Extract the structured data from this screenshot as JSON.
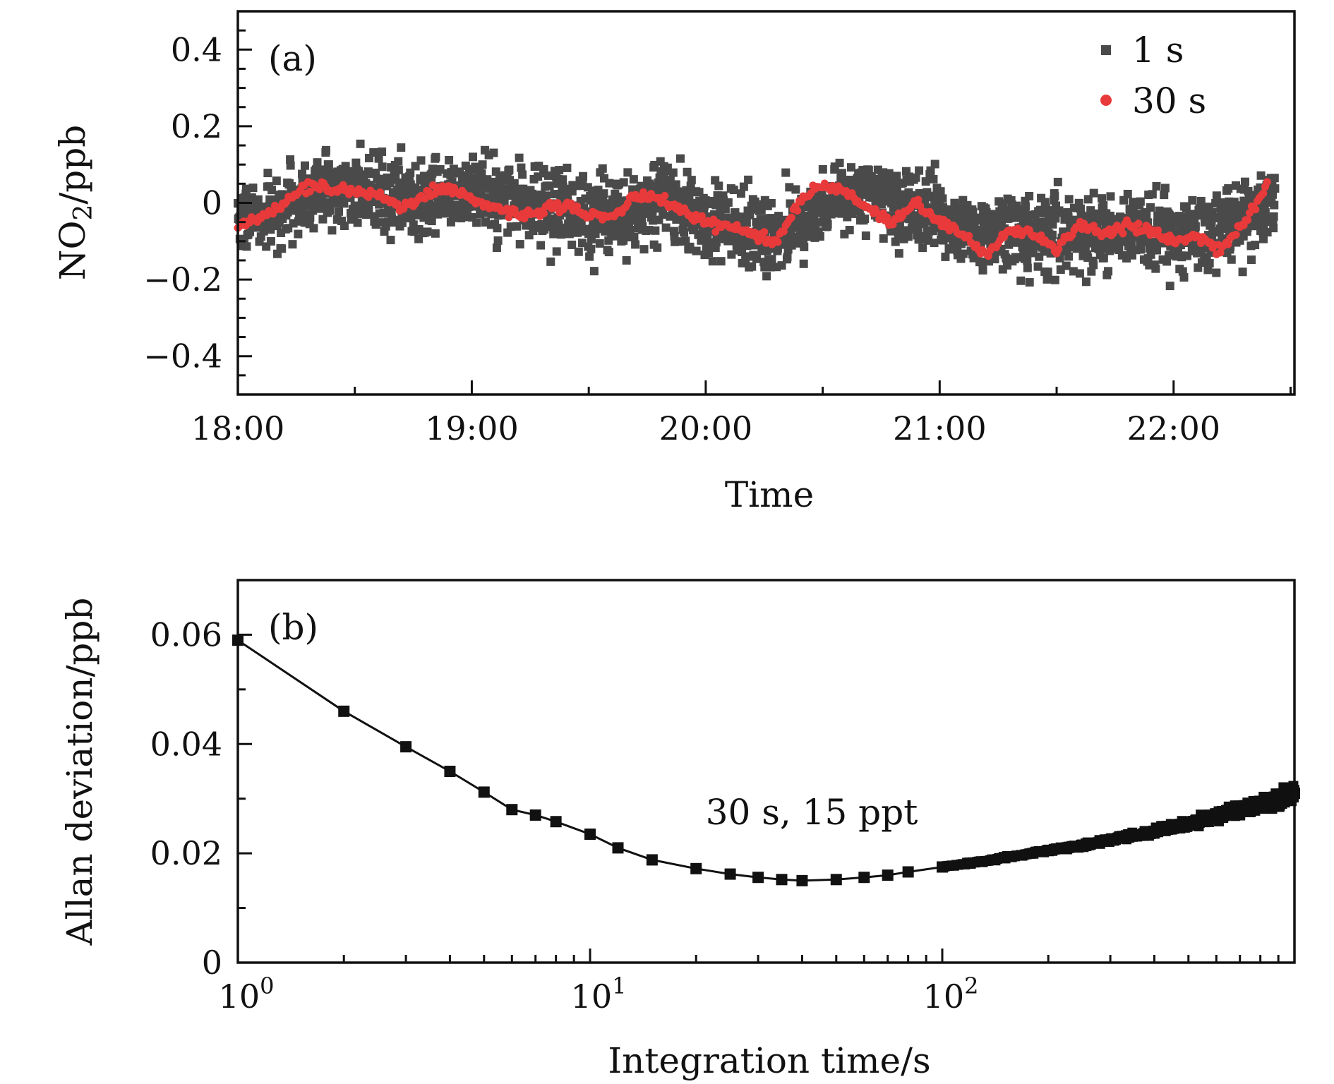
{
  "chart_data": [
    {
      "type": "scatter",
      "panel_label": "(a)",
      "xlabel": "Time",
      "ylabel": "NO2/ppb",
      "ylabel_main": "NO",
      "ylabel_sub": "2",
      "ylabel_tail": "/ppb",
      "x_range": [
        "18:00",
        "22:30"
      ],
      "ylim": [
        -0.5,
        0.5
      ],
      "x_ticks": [
        "18:00",
        "19:00",
        "20:00",
        "21:00",
        "22:00"
      ],
      "y_ticks": [
        "0.4",
        "0.2",
        "0",
        "−0.2",
        "−0.4"
      ],
      "legend": "top-right",
      "grid": false,
      "series": [
        {
          "name": "1 s",
          "color": "#4a4a4a",
          "marker": "square",
          "spread_ppb": 0.08,
          "baseline": [
            [
              "18:00",
              -0.04
            ],
            [
              "18:10",
              -0.02
            ],
            [
              "18:20",
              0.04
            ],
            [
              "18:30",
              0.04
            ],
            [
              "18:40",
              0.02
            ],
            [
              "18:50",
              0.0
            ],
            [
              "19:00",
              0.03
            ],
            [
              "19:10",
              0.0
            ],
            [
              "19:20",
              -0.02
            ],
            [
              "19:30",
              -0.03
            ],
            [
              "19:40",
              -0.04
            ],
            [
              "19:50",
              0.02
            ],
            [
              "20:00",
              -0.05
            ],
            [
              "20:10",
              -0.07
            ],
            [
              "20:20",
              -0.09
            ],
            [
              "20:30",
              -0.01
            ],
            [
              "20:40",
              0.03
            ],
            [
              "20:50",
              -0.01
            ],
            [
              "21:00",
              -0.05
            ],
            [
              "21:10",
              -0.08
            ],
            [
              "21:20",
              -0.07
            ],
            [
              "21:30",
              -0.09
            ],
            [
              "21:40",
              -0.08
            ],
            [
              "21:50",
              -0.08
            ],
            [
              "22:00",
              -0.09
            ],
            [
              "22:10",
              -0.07
            ],
            [
              "22:20",
              -0.03
            ],
            [
              "22:26",
              0.0
            ]
          ]
        },
        {
          "name": "30 s",
          "color": "#e83a3a",
          "marker": "circle",
          "points": [
            [
              "18:00",
              -0.06
            ],
            [
              "18:06",
              -0.04
            ],
            [
              "18:12",
              0.0
            ],
            [
              "18:18",
              0.05
            ],
            [
              "18:24",
              0.04
            ],
            [
              "18:30",
              0.03
            ],
            [
              "18:36",
              0.02
            ],
            [
              "18:42",
              -0.01
            ],
            [
              "18:48",
              0.02
            ],
            [
              "18:54",
              0.04
            ],
            [
              "19:00",
              0.01
            ],
            [
              "19:06",
              -0.01
            ],
            [
              "19:12",
              -0.03
            ],
            [
              "19:18",
              -0.02
            ],
            [
              "19:24",
              -0.01
            ],
            [
              "19:30",
              -0.03
            ],
            [
              "19:36",
              -0.04
            ],
            [
              "19:42",
              0.02
            ],
            [
              "19:48",
              0.01
            ],
            [
              "19:54",
              -0.02
            ],
            [
              "20:00",
              -0.05
            ],
            [
              "20:06",
              -0.06
            ],
            [
              "20:12",
              -0.08
            ],
            [
              "20:18",
              -0.1
            ],
            [
              "20:24",
              0.0
            ],
            [
              "20:30",
              0.05
            ],
            [
              "20:36",
              0.03
            ],
            [
              "20:42",
              -0.02
            ],
            [
              "20:48",
              -0.05
            ],
            [
              "20:54",
              0.0
            ],
            [
              "21:00",
              -0.05
            ],
            [
              "21:06",
              -0.08
            ],
            [
              "21:12",
              -0.14
            ],
            [
              "21:18",
              -0.07
            ],
            [
              "21:24",
              -0.08
            ],
            [
              "21:30",
              -0.12
            ],
            [
              "21:36",
              -0.06
            ],
            [
              "21:42",
              -0.08
            ],
            [
              "21:48",
              -0.06
            ],
            [
              "21:54",
              -0.07
            ],
            [
              "22:00",
              -0.1
            ],
            [
              "22:06",
              -0.09
            ],
            [
              "22:12",
              -0.12
            ],
            [
              "22:18",
              -0.06
            ],
            [
              "22:24",
              0.05
            ]
          ]
        }
      ]
    },
    {
      "type": "line",
      "panel_label": "(b)",
      "xlabel": "Integration time/s",
      "ylabel": "Allan deviation/ppb",
      "x_scale": "log",
      "xlim": [
        1,
        1000
      ],
      "ylim": [
        0,
        0.07
      ],
      "x_ticks": [
        {
          "base": "10",
          "exp": "0"
        },
        {
          "base": "10",
          "exp": "1"
        },
        {
          "base": "10",
          "exp": "2"
        }
      ],
      "y_ticks": [
        "0.06",
        "0.04",
        "0.02",
        "0"
      ],
      "annotation": "30 s, 15 ppt",
      "grid": false,
      "series": [
        {
          "color": "#111111",
          "marker": "square",
          "x": [
            1,
            2,
            3,
            4,
            5,
            6,
            7,
            8,
            10,
            12,
            15,
            20,
            25,
            30,
            35,
            40,
            50,
            60,
            70,
            80,
            100,
            120,
            150,
            200,
            250,
            300,
            400,
            500,
            600,
            700,
            800,
            900,
            1000
          ],
          "y": [
            0.059,
            0.046,
            0.0395,
            0.035,
            0.0312,
            0.028,
            0.027,
            0.0258,
            0.0235,
            0.021,
            0.0188,
            0.0172,
            0.0162,
            0.0156,
            0.0152,
            0.015,
            0.0152,
            0.0156,
            0.016,
            0.0166,
            0.0175,
            0.0182,
            0.0192,
            0.0205,
            0.0215,
            0.0225,
            0.024,
            0.0255,
            0.0268,
            0.028,
            0.029,
            0.03,
            0.031
          ]
        }
      ]
    }
  ]
}
